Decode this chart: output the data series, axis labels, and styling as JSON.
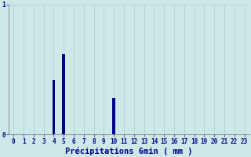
{
  "hours": [
    0,
    1,
    2,
    3,
    4,
    5,
    6,
    7,
    8,
    9,
    10,
    11,
    12,
    13,
    14,
    15,
    16,
    17,
    18,
    19,
    20,
    21,
    22,
    23
  ],
  "values": [
    0,
    0,
    0,
    0,
    0.42,
    0.62,
    0,
    0,
    0,
    0,
    0.28,
    0,
    0,
    0,
    0,
    0,
    0,
    0,
    0,
    0,
    0,
    0,
    0,
    0
  ],
  "bar_color": "#00008b",
  "background_color": "#cce8e8",
  "plot_bg_color": "#cce8e8",
  "xlabel": "Précipitations 6min ( mm )",
  "xlabel_color": "#00008b",
  "tick_color": "#00008b",
  "axis_color": "#909090",
  "grid_color": "#aacaca",
  "ylim": [
    0,
    1.0
  ],
  "yticks": [
    0,
    1
  ],
  "xlim": [
    -0.5,
    23.5
  ],
  "xlabel_fontsize": 7.5,
  "tick_fontsize": 5.5
}
